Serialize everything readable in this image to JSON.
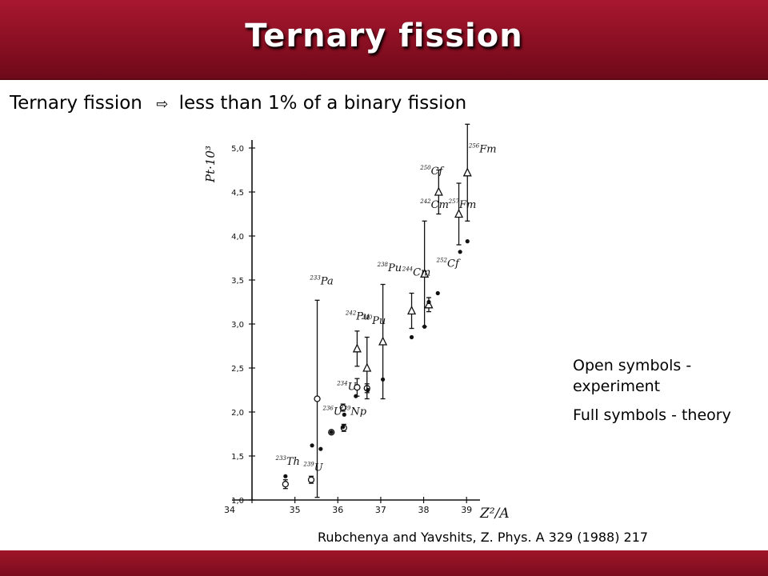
{
  "header": {
    "title": "Ternary fission"
  },
  "subtitle": {
    "text_before": "Ternary fission",
    "arrow": "⇨",
    "text_after": "less than 1% of a binary fission"
  },
  "legend": {
    "open": "Open symbols - experiment",
    "full": "Full symbols - theory"
  },
  "citation": "Rubchenya and Yavshits, Z. Phys. A 329 (1988) 217",
  "colors": {
    "bar": "#8a0f22",
    "ink": "#111111"
  },
  "chart_data": {
    "type": "scatter",
    "xlabel": "Z²/A",
    "ylabel": "Pt·10³",
    "xlim": [
      34,
      39.5
    ],
    "ylim": [
      1.0,
      5.0
    ],
    "x_ticks": [
      "34",
      "35",
      "36",
      "37",
      "38",
      "39"
    ],
    "y_ticks": [
      "1,0",
      "1,5",
      "2,0",
      "2,5",
      "3,0",
      "3,5",
      "4,0",
      "4,5",
      "5,0"
    ],
    "experiment": [
      {
        "x": 34.78,
        "y": 1.18,
        "err": 0.05,
        "shape": "circle"
      },
      {
        "x": 35.38,
        "y": 1.23,
        "err": 0.04,
        "shape": "circle"
      },
      {
        "x": 35.52,
        "y": 2.15,
        "err": 1.12,
        "shape": "circle"
      },
      {
        "x": 35.85,
        "y": 1.77,
        "err": 0.02,
        "shape": "circle"
      },
      {
        "x": 36.12,
        "y": 2.05,
        "err": 0.04,
        "shape": "circle"
      },
      {
        "x": 36.14,
        "y": 1.82,
        "err": 0.04,
        "shape": "circle"
      },
      {
        "x": 36.45,
        "y": 2.28,
        "err": 0.1,
        "shape": "circle"
      },
      {
        "x": 36.68,
        "y": 2.27,
        "err": 0.05,
        "shape": "circle"
      },
      {
        "x": 36.45,
        "y": 2.72,
        "err": 0.2,
        "shape": "triangle"
      },
      {
        "x": 36.68,
        "y": 2.5,
        "err": 0.35,
        "shape": "triangle"
      },
      {
        "x": 37.05,
        "y": 2.8,
        "err": 0.65,
        "shape": "triangle"
      },
      {
        "x": 37.72,
        "y": 3.15,
        "err": 0.2,
        "shape": "triangle"
      },
      {
        "x": 38.02,
        "y": 3.57,
        "err": 0.6,
        "shape": "triangle"
      },
      {
        "x": 38.12,
        "y": 3.22,
        "err": 0.08,
        "shape": "triangle"
      },
      {
        "x": 38.35,
        "y": 4.5,
        "err": 0.25,
        "shape": "triangle"
      },
      {
        "x": 38.82,
        "y": 4.25,
        "err": 0.35,
        "shape": "triangle"
      },
      {
        "x": 39.02,
        "y": 4.72,
        "err": 0.55,
        "shape": "triangle"
      }
    ],
    "theory": [
      {
        "x": 34.78,
        "y": 1.27
      },
      {
        "x": 35.4,
        "y": 1.62
      },
      {
        "x": 35.6,
        "y": 1.58
      },
      {
        "x": 35.85,
        "y": 1.77
      },
      {
        "x": 36.12,
        "y": 1.83
      },
      {
        "x": 36.15,
        "y": 1.97
      },
      {
        "x": 36.42,
        "y": 2.18
      },
      {
        "x": 36.7,
        "y": 2.25
      },
      {
        "x": 37.05,
        "y": 2.37
      },
      {
        "x": 37.72,
        "y": 2.85
      },
      {
        "x": 38.02,
        "y": 2.97
      },
      {
        "x": 38.12,
        "y": 3.25
      },
      {
        "x": 38.33,
        "y": 3.35
      },
      {
        "x": 38.85,
        "y": 3.82
      },
      {
        "x": 39.02,
        "y": 3.94
      }
    ],
    "labels": [
      {
        "x": 34.55,
        "y": 1.4,
        "mass": "233",
        "element": "Th"
      },
      {
        "x": 35.2,
        "y": 1.33,
        "mass": "239",
        "element": "U"
      },
      {
        "x": 35.35,
        "y": 3.45,
        "mass": "233",
        "element": "Pa"
      },
      {
        "x": 35.65,
        "y": 1.97,
        "mass": "236",
        "element": "U"
      },
      {
        "x": 35.98,
        "y": 2.25,
        "mass": "234",
        "element": "U"
      },
      {
        "x": 36.05,
        "y": 1.97,
        "mass": "239",
        "element": "Np"
      },
      {
        "x": 36.18,
        "y": 3.05,
        "mass": "242",
        "element": "Pu"
      },
      {
        "x": 36.55,
        "y": 3.0,
        "mass": "240",
        "element": "Pu"
      },
      {
        "x": 36.92,
        "y": 3.6,
        "mass": "238",
        "element": "Pu"
      },
      {
        "x": 37.5,
        "y": 3.55,
        "mass": "244",
        "element": "Cm"
      },
      {
        "x": 37.92,
        "y": 4.7,
        "mass": "250",
        "element": "Cf"
      },
      {
        "x": 37.92,
        "y": 4.32,
        "mass": "242",
        "element": "Cm"
      },
      {
        "x": 38.3,
        "y": 3.65,
        "mass": "252",
        "element": "Cf"
      },
      {
        "x": 38.58,
        "y": 4.32,
        "mass": "257",
        "element": "Fm"
      },
      {
        "x": 39.05,
        "y": 4.95,
        "mass": "256",
        "element": "Fm"
      }
    ]
  }
}
